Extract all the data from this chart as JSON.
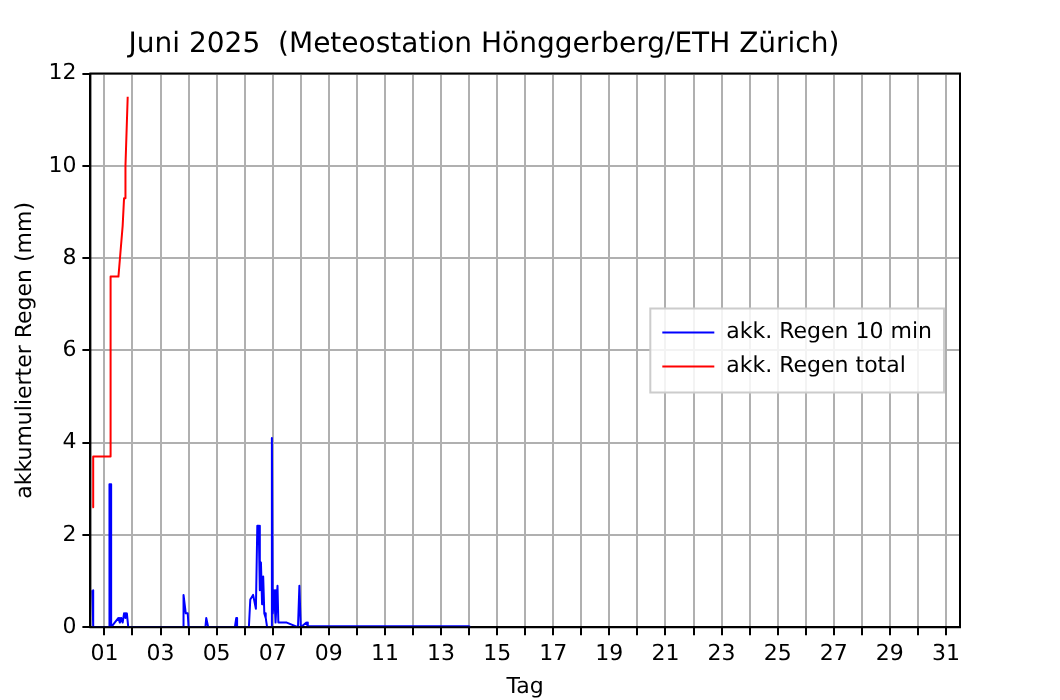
{
  "chart_data": {
    "type": "line",
    "title": "Juni 2025  (Meteostation Hönggerberg/ETH Zürich)",
    "xlabel": "Tag",
    "ylabel": "akkumulierter Regen (mm)",
    "xlim": [
      0.5,
      31.5
    ],
    "ylim": [
      0,
      12
    ],
    "xticks": [
      {
        "value": 1,
        "label": "01"
      },
      {
        "value": 2,
        "label": null
      },
      {
        "value": 3,
        "label": "03"
      },
      {
        "value": 4,
        "label": null
      },
      {
        "value": 5,
        "label": "05"
      },
      {
        "value": 6,
        "label": null
      },
      {
        "value": 7,
        "label": "07"
      },
      {
        "value": 8,
        "label": null
      },
      {
        "value": 9,
        "label": "09"
      },
      {
        "value": 10,
        "label": null
      },
      {
        "value": 11,
        "label": "11"
      },
      {
        "value": 12,
        "label": null
      },
      {
        "value": 13,
        "label": "13"
      },
      {
        "value": 14,
        "label": null
      },
      {
        "value": 15,
        "label": "15"
      },
      {
        "value": 16,
        "label": null
      },
      {
        "value": 17,
        "label": "17"
      },
      {
        "value": 18,
        "label": null
      },
      {
        "value": 19,
        "label": "19"
      },
      {
        "value": 20,
        "label": null
      },
      {
        "value": 21,
        "label": "21"
      },
      {
        "value": 22,
        "label": null
      },
      {
        "value": 23,
        "label": "23"
      },
      {
        "value": 24,
        "label": null
      },
      {
        "value": 25,
        "label": "25"
      },
      {
        "value": 26,
        "label": null
      },
      {
        "value": 27,
        "label": "27"
      },
      {
        "value": 28,
        "label": null
      },
      {
        "value": 29,
        "label": "29"
      },
      {
        "value": 30,
        "label": null
      },
      {
        "value": 31,
        "label": "31"
      }
    ],
    "yticks": [
      0,
      2,
      4,
      6,
      8,
      10,
      12
    ],
    "grid": true,
    "legend": "right",
    "marker": "none",
    "line_style": "solid",
    "series": [
      {
        "name": "akk. Regen 10 min",
        "color": "#0000ff",
        "x": [
          0.57,
          0.6,
          1.15,
          1.18,
          1.21,
          1.24,
          1.5,
          1.55,
          1.6,
          1.65,
          1.7,
          1.75,
          1.8,
          1.85,
          3.8,
          3.82,
          3.9,
          3.97,
          4.0,
          4.6,
          4.63,
          4.7,
          5.65,
          5.7,
          5.73,
          6.15,
          6.2,
          6.3,
          6.4,
          6.45,
          6.5,
          6.54,
          6.58,
          6.62,
          6.66,
          6.7,
          6.75,
          6.8,
          6.95,
          6.97,
          7.0,
          7.05,
          7.1,
          7.17,
          7.2,
          7.3,
          7.5,
          7.9,
          7.95,
          8.0,
          8.2,
          8.25,
          9,
          10,
          11,
          12,
          13,
          14,
          14.05
        ],
        "values": [
          0.8,
          0,
          0,
          3.1,
          3.1,
          0,
          0.2,
          0.1,
          0.2,
          0.1,
          0.3,
          0.2,
          0.3,
          0,
          0,
          0.7,
          0.3,
          0.3,
          0,
          0,
          0.2,
          0,
          0,
          0.2,
          0,
          0,
          0.6,
          0.7,
          0.4,
          2.2,
          2.2,
          0.8,
          1.4,
          0.5,
          1.1,
          0.3,
          0.2,
          0,
          0,
          4.1,
          0.3,
          0.8,
          0.1,
          0.9,
          0.1,
          0.1,
          0.1,
          0,
          0.9,
          0,
          0.1,
          0.02,
          0.02,
          0.02,
          0.02,
          0.02,
          0.02,
          0.02,
          0
        ]
      },
      {
        "name": "akk. Regen total",
        "color": "#ff0000",
        "x": [
          0.57,
          0.6,
          1.2,
          1.22,
          1.5,
          1.52,
          1.65,
          1.7,
          1.75,
          1.83
        ],
        "values": [
          2.6,
          3.7,
          3.7,
          7.6,
          7.6,
          7.6,
          8.7,
          9.3,
          10.0,
          11.5
        ]
      }
    ]
  }
}
